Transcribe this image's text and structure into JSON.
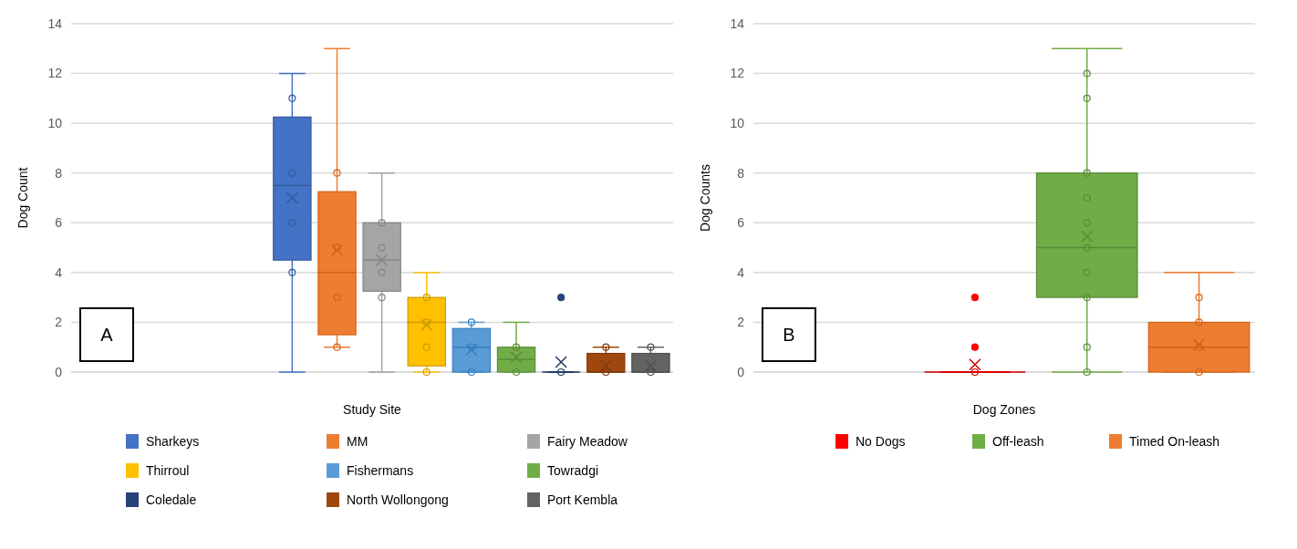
{
  "chart_data": [
    {
      "type": "box",
      "xlabel": "Study Site",
      "ylabel": "Dog Count",
      "categories": [
        null
      ],
      "ylim": [
        0,
        14
      ],
      "yticks": [
        0,
        2,
        4,
        6,
        8,
        10,
        12,
        14
      ],
      "grid": "y",
      "tick_labels": "y",
      "legend": "bottom",
      "marker": "circle",
      "annotations": [
        "A"
      ],
      "series": [
        {
          "name": "Sharkeys",
          "color": "#4472c4",
          "boxes": [
            {
              "low": 0,
              "q1": 4.5,
              "median": 7.5,
              "q3": 10.25,
              "high": 12,
              "mean": 7,
              "outliers": [
                11,
                8,
                6,
                4
              ]
            }
          ]
        },
        {
          "name": "MM",
          "color": "#ed7d31",
          "boxes": [
            {
              "low": 1,
              "q1": 1.5,
              "median": 4,
              "q3": 7.25,
              "high": 13,
              "mean": 4.9,
              "outliers": [
                8,
                5,
                3,
                1
              ]
            }
          ]
        },
        {
          "name": "Fairy Meadow",
          "color": "#a5a5a5",
          "boxes": [
            {
              "low": 0,
              "q1": 3.25,
              "median": 4.5,
              "q3": 6,
              "high": 8,
              "mean": 4.5,
              "outliers": [
                6,
                5,
                4,
                3
              ]
            }
          ]
        },
        {
          "name": "Thirroul",
          "color": "#ffc000",
          "boxes": [
            {
              "low": 0,
              "q1": 0.25,
              "median": 2,
              "q3": 3,
              "high": 4,
              "mean": 1.9,
              "outliers": [
                3,
                2,
                1,
                0
              ]
            }
          ]
        },
        {
          "name": "Fishermans",
          "color": "#5b9bd5",
          "boxes": [
            {
              "low": 0,
              "q1": 0,
              "median": 1,
              "q3": 1.75,
              "high": 2,
              "mean": 0.9,
              "outliers": [
                2,
                1,
                0
              ]
            }
          ]
        },
        {
          "name": "Towradgi",
          "color": "#70ad47",
          "boxes": [
            {
              "low": 0,
              "q1": 0,
              "median": 0.5,
              "q3": 1,
              "high": 2,
              "mean": 0.6,
              "outliers": [
                1,
                0
              ]
            }
          ]
        },
        {
          "name": "Coledale",
          "color": "#264478",
          "boxes": [
            {
              "low": 0,
              "q1": 0,
              "median": 0,
              "q3": 0,
              "high": 0,
              "mean": 0.4,
              "outliers": [
                3,
                0
              ]
            }
          ]
        },
        {
          "name": "North Wollongong",
          "color": "#9e480e",
          "boxes": [
            {
              "low": 0,
              "q1": 0,
              "median": 0,
              "q3": 0.75,
              "high": 1,
              "mean": 0.25,
              "outliers": [
                1,
                0
              ]
            }
          ]
        },
        {
          "name": "Port Kembla",
          "color": "#636363",
          "boxes": [
            {
              "low": 0,
              "q1": 0,
              "median": 0,
              "q3": 0.75,
              "high": 1,
              "mean": 0.25,
              "outliers": [
                1,
                0
              ]
            }
          ]
        }
      ]
    },
    {
      "type": "box",
      "xlabel": "Dog Zones",
      "ylabel": "Dog Counts",
      "categories": [
        null
      ],
      "ylim": [
        0,
        14
      ],
      "yticks": [
        0,
        2,
        4,
        6,
        8,
        10,
        12,
        14
      ],
      "grid": "y",
      "tick_labels": "y",
      "legend": "bottom",
      "marker": "circle",
      "annotations": [
        "B"
      ],
      "series": [
        {
          "name": "No Dogs",
          "color": "#ff0000",
          "boxes": [
            {
              "low": 0,
              "q1": 0,
              "median": 0,
              "q3": 0,
              "high": 0,
              "mean": 0.3,
              "outliers": [
                3,
                1,
                0
              ]
            }
          ]
        },
        {
          "name": "Off-leash",
          "color": "#70ad47",
          "boxes": [
            {
              "low": 0,
              "q1": 3,
              "median": 5,
              "q3": 8,
              "high": 13,
              "mean": 5.45,
              "outliers": [
                12,
                11,
                8,
                7,
                6,
                5,
                4,
                3,
                1,
                0
              ]
            }
          ]
        },
        {
          "name": "Timed On-leash",
          "color": "#ed7d31",
          "boxes": [
            {
              "low": 0,
              "q1": 0,
              "median": 1,
              "q3": 2,
              "high": 4,
              "mean": 1.1,
              "outliers": [
                3,
                2,
                1,
                0
              ]
            }
          ]
        }
      ]
    }
  ]
}
